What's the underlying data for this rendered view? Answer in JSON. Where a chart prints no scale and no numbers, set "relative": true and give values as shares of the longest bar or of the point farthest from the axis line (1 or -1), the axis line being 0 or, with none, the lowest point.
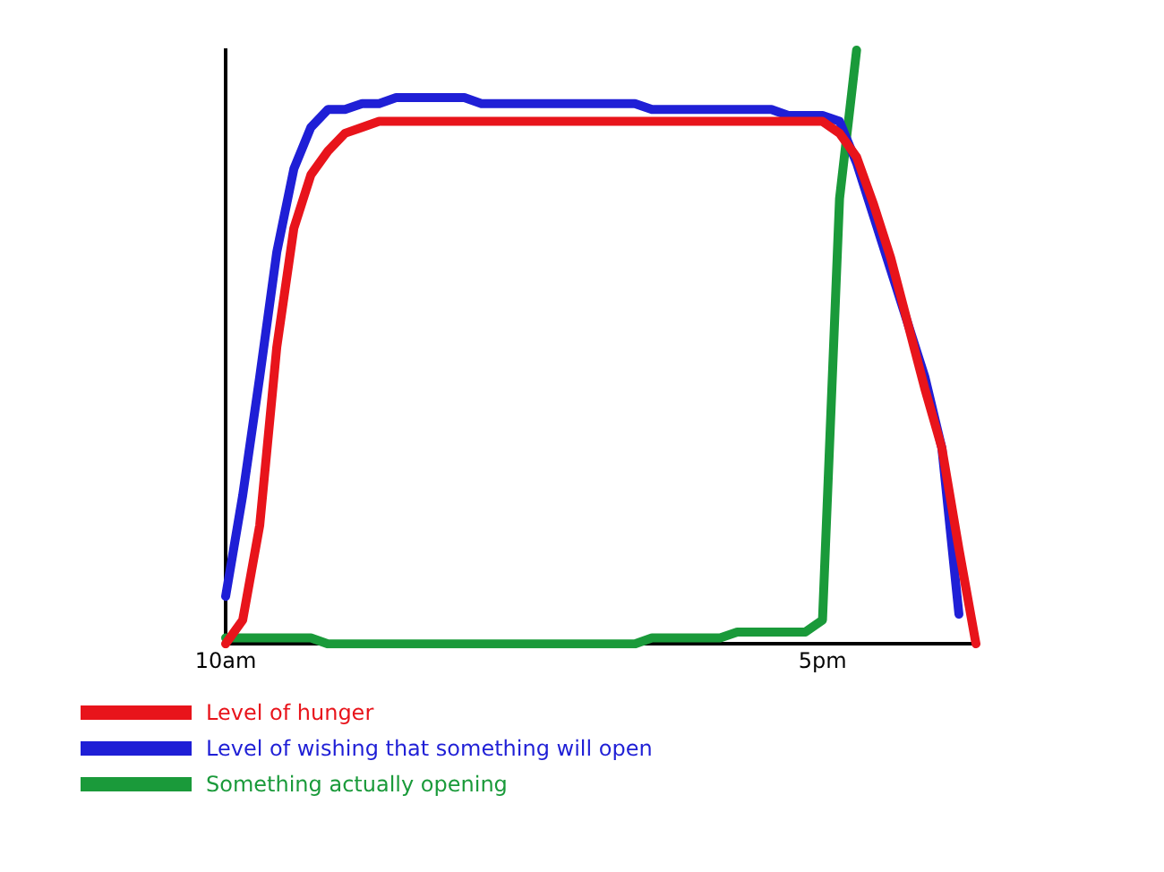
{
  "chart_data": {
    "type": "line",
    "relative": true,
    "categories": [
      "10am",
      null,
      null,
      null,
      null,
      null,
      null,
      null,
      null,
      null,
      null,
      null,
      null,
      null,
      null,
      null,
      null,
      null,
      null,
      null,
      null,
      null,
      null,
      null,
      null,
      null,
      null,
      null,
      null,
      null,
      null,
      null,
      null,
      null,
      null,
      "5pm",
      null,
      null,
      null,
      null,
      null,
      null,
      null,
      null,
      null
    ],
    "grid": false,
    "legend": "bottom",
    "marker": "none",
    "line_style": "solid",
    "series": [
      {
        "name": "Level of hunger",
        "color": "#e8141b",
        "values": [
          0,
          0.04,
          0.2,
          0.5,
          0.7,
          0.79,
          0.83,
          0.86,
          0.87,
          0.88,
          0.88,
          0.88,
          0.88,
          0.88,
          0.88,
          0.88,
          0.88,
          0.88,
          0.88,
          0.88,
          0.88,
          0.88,
          0.88,
          0.88,
          0.88,
          0.88,
          0.88,
          0.88,
          0.88,
          0.88,
          0.88,
          0.88,
          0.88,
          0.88,
          0.88,
          0.88,
          0.86,
          0.82,
          0.74,
          0.65,
          0.54,
          0.43,
          0.33,
          0.16,
          0
        ]
      },
      {
        "name": "Level of wishing that something will open",
        "color": "#1f1fd6",
        "values": [
          0.08,
          0.25,
          0.45,
          0.66,
          0.8,
          0.87,
          0.9,
          0.9,
          0.91,
          0.91,
          0.92,
          0.92,
          0.92,
          0.92,
          0.92,
          0.91,
          0.91,
          0.91,
          0.91,
          0.91,
          0.91,
          0.91,
          0.91,
          0.91,
          0.91,
          0.9,
          0.9,
          0.9,
          0.9,
          0.9,
          0.9,
          0.9,
          0.9,
          0.89,
          0.89,
          0.89,
          0.88,
          0.81,
          0.72,
          0.63,
          0.54,
          0.45,
          0.33,
          0.05,
          null
        ]
      },
      {
        "name": "Something actually opening",
        "color": "#1a9a3a",
        "values": [
          0.01,
          0.01,
          0.01,
          0.01,
          0.01,
          0.01,
          0,
          0,
          0,
          0,
          0,
          0,
          0,
          0,
          0,
          0,
          0,
          0,
          0,
          0,
          0,
          0,
          0,
          0,
          0,
          0.01,
          0.01,
          0.01,
          0.01,
          0.01,
          0.02,
          0.02,
          0.02,
          0.02,
          0.02,
          0.04,
          0.75,
          1,
          null,
          null,
          null,
          null,
          null,
          null,
          null
        ]
      }
    ]
  }
}
